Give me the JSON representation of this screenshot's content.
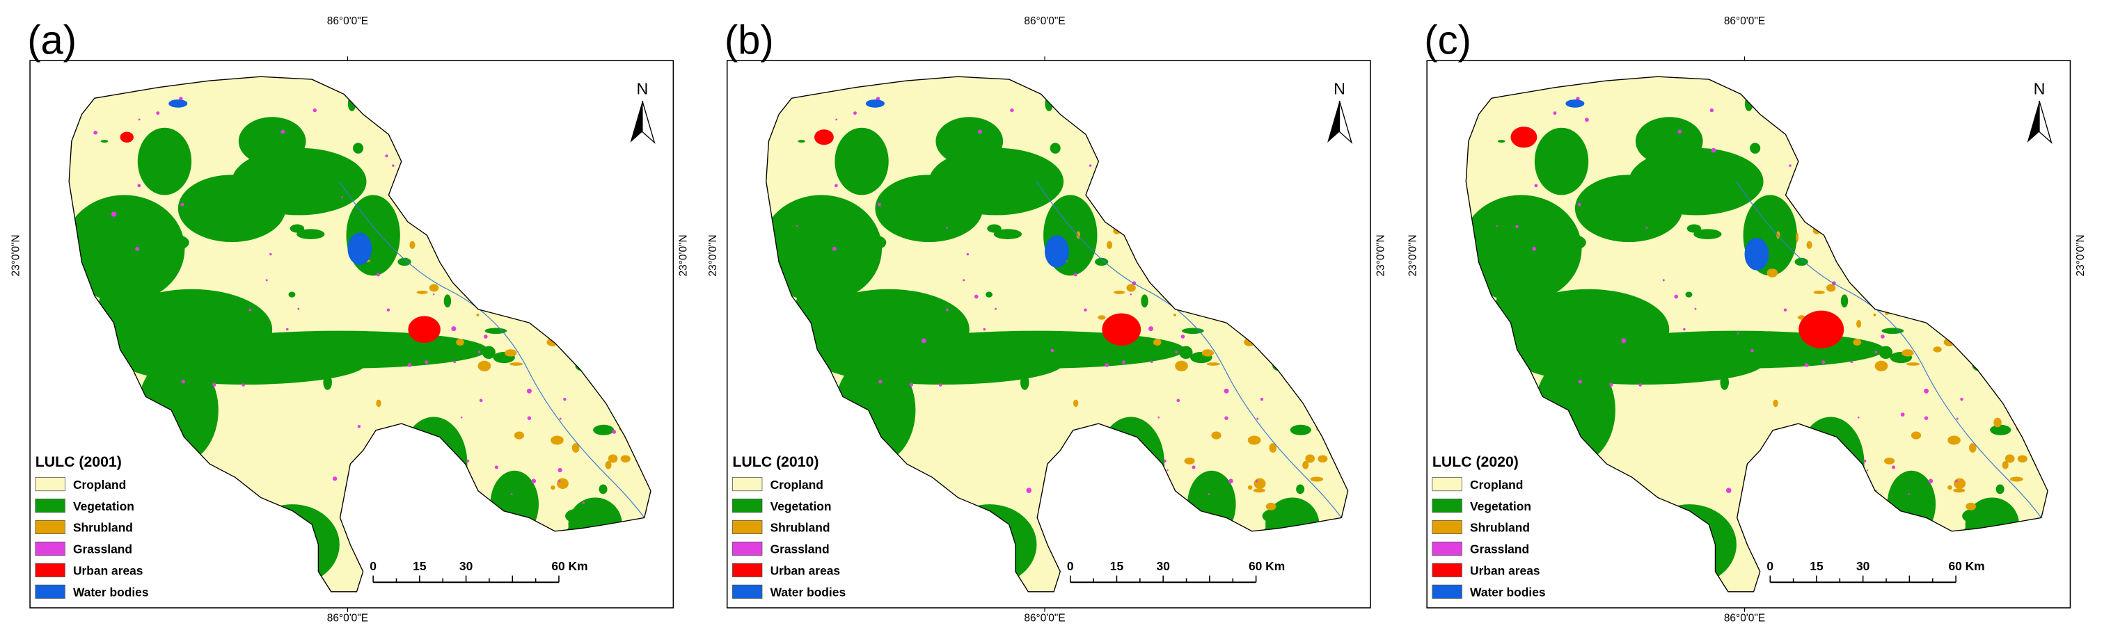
{
  "panels": [
    {
      "label": "(a)",
      "legend_title": "LULC (2001)"
    },
    {
      "label": "(b)",
      "legend_title": "LULC (2010)"
    },
    {
      "label": "(c)",
      "legend_title": "LULC (2020)"
    }
  ],
  "legend": [
    {
      "label": "Cropland",
      "color": "#fbf8c0"
    },
    {
      "label": "Vegetation",
      "color": "#0a9a0a"
    },
    {
      "label": "Shrubland",
      "color": "#e2a000"
    },
    {
      "label": "Grassland",
      "color": "#e040e0"
    },
    {
      "label": "Urban areas",
      "color": "#ff0000"
    },
    {
      "label": "Water bodies",
      "color": "#1060e0"
    }
  ],
  "longitude_label": "86°0'0\"E",
  "latitude_label": "23°0'0\"N",
  "north": "N",
  "scale_bar": [
    "0",
    "15",
    "30",
    "60 Km"
  ]
}
